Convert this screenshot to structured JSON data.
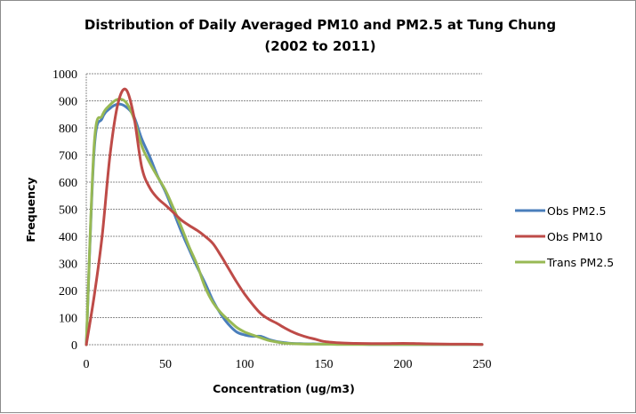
{
  "chart_data": {
    "type": "line",
    "title": "Distribution of Daily Averaged PM10 and PM2.5 at Tung Chung",
    "subtitle": "(2002 to 2011)",
    "xlabel": "Concentration (ug/m3)",
    "ylabel": "Frequency",
    "xlim": [
      0,
      250
    ],
    "ylim": [
      0,
      1000
    ],
    "x_ticks": [
      "0",
      "50",
      "100",
      "150",
      "200",
      "250"
    ],
    "y_ticks": [
      "0",
      "100",
      "200",
      "300",
      "400",
      "500",
      "600",
      "700",
      "800",
      "900",
      "1000"
    ],
    "grid": "horizontal",
    "legend_position": "right",
    "smoothed": true,
    "x": [
      0,
      5,
      10,
      15,
      20,
      25,
      30,
      35,
      40,
      45,
      50,
      55,
      60,
      65,
      70,
      75,
      80,
      85,
      90,
      95,
      100,
      105,
      110,
      115,
      120,
      125,
      130,
      135,
      140,
      145,
      150,
      160,
      170,
      180,
      190,
      200,
      210,
      220,
      230,
      240,
      250
    ],
    "series": [
      {
        "name": "Obs PM2.5",
        "color": "#4a7ebb",
        "values": [
          0,
          720,
          835,
          872,
          888,
          878,
          843,
          760,
          695,
          623,
          564,
          492,
          418,
          351,
          287,
          228,
          163,
          113,
          74,
          47,
          36,
          31,
          31,
          20,
          12,
          8,
          5,
          4,
          3,
          3,
          2,
          2,
          2,
          1,
          1,
          1,
          1,
          1,
          1,
          1,
          1
        ]
      },
      {
        "name": "Obs PM10",
        "color": "#be4b48",
        "values": [
          0,
          180,
          400,
          700,
          890,
          942,
          845,
          656,
          580,
          541,
          515,
          488,
          460,
          440,
          422,
          400,
          373,
          329,
          280,
          231,
          187,
          149,
          116,
          95,
          80,
          63,
          48,
          36,
          27,
          20,
          12,
          7,
          5,
          4,
          4,
          5,
          4,
          3,
          2,
          2,
          1
        ]
      },
      {
        "name": "Trans PM2.5",
        "color": "#98b954",
        "values": [
          0,
          740,
          845,
          885,
          906,
          895,
          836,
          734,
          672,
          620,
          570,
          505,
          435,
          361,
          295,
          213,
          156,
          118,
          90,
          64,
          47,
          36,
          26,
          16,
          10,
          6,
          4,
          3,
          2,
          2,
          2,
          1,
          1,
          1,
          1,
          1,
          1,
          1,
          1,
          1,
          1
        ]
      }
    ]
  }
}
